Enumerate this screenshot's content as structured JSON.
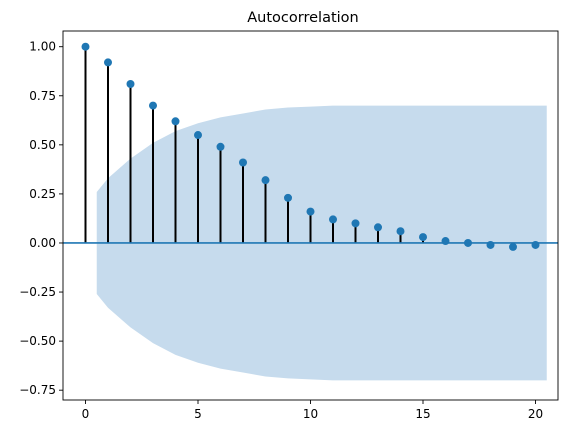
{
  "chart_data": {
    "type": "stem",
    "title": "Autocorrelation",
    "xlabel": "",
    "ylabel": "",
    "xlim": [
      -1,
      21
    ],
    "ylim": [
      -0.8,
      1.08
    ],
    "x_ticks": [
      0,
      5,
      10,
      15,
      20
    ],
    "x_tick_labels": [
      "0",
      "5",
      "10",
      "15",
      "20"
    ],
    "y_ticks": [
      1.0,
      0.75,
      0.5,
      0.25,
      0.0,
      -0.25,
      -0.5,
      -0.75
    ],
    "y_tick_labels": [
      "1.00",
      "0.75",
      "0.50",
      "0.25",
      "0.00",
      "−0.25",
      "−0.50",
      "−0.75"
    ],
    "grid": false,
    "lags": [
      0,
      1,
      2,
      3,
      4,
      5,
      6,
      7,
      8,
      9,
      10,
      11,
      12,
      13,
      14,
      15,
      16,
      17,
      18,
      19,
      20
    ],
    "acf": [
      1.0,
      0.92,
      0.81,
      0.7,
      0.62,
      0.55,
      0.49,
      0.41,
      0.32,
      0.23,
      0.16,
      0.12,
      0.1,
      0.08,
      0.06,
      0.03,
      0.01,
      0.0,
      -0.01,
      -0.02,
      -0.01
    ],
    "confidence_band": {
      "x": [
        0.5,
        1,
        2,
        3,
        4,
        5,
        6,
        7,
        8,
        9,
        10,
        11,
        12,
        13,
        14,
        15,
        16,
        17,
        18,
        19,
        20,
        20.5
      ],
      "upper": [
        0.26,
        0.33,
        0.43,
        0.51,
        0.57,
        0.61,
        0.64,
        0.66,
        0.68,
        0.69,
        0.695,
        0.7,
        0.7,
        0.7,
        0.7,
        0.7,
        0.7,
        0.7,
        0.7,
        0.7,
        0.7,
        0.7
      ],
      "lower": [
        -0.26,
        -0.33,
        -0.43,
        -0.51,
        -0.57,
        -0.61,
        -0.64,
        -0.66,
        -0.68,
        -0.69,
        -0.695,
        -0.7,
        -0.7,
        -0.7,
        -0.7,
        -0.7,
        -0.7,
        -0.7,
        -0.7,
        -0.7,
        -0.7,
        -0.7
      ]
    },
    "colors": {
      "marker": "#1f77b4",
      "stem": "#000000",
      "band": "#c6dbed",
      "zero_line": "#1f77b4"
    }
  }
}
